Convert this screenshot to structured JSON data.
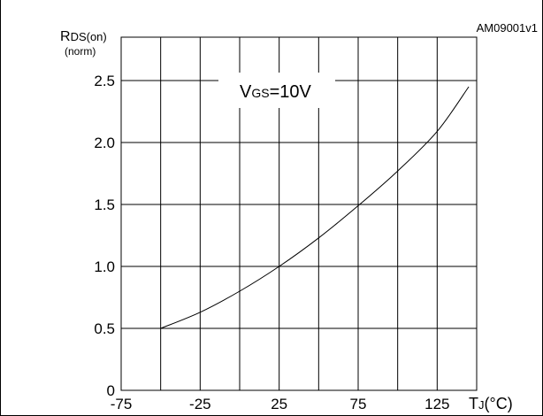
{
  "chart_data": {
    "type": "line",
    "code": "AM09001v1",
    "ylabel": {
      "main": "R",
      "sub": "DS(on)",
      "unit": "(norm)"
    },
    "xlabel": {
      "main": "T",
      "sub": "J",
      "unit": "(°C)"
    },
    "annotation": {
      "main": "V",
      "sub": "GS",
      "rest": "=10V"
    },
    "xlim": [
      -75,
      150
    ],
    "ylim": [
      0,
      2.85
    ],
    "xticks": [
      {
        "value": -75,
        "label": "-75"
      },
      {
        "value": -25,
        "label": "-25"
      },
      {
        "value": 25,
        "label": "25"
      },
      {
        "value": 75,
        "label": "75"
      },
      {
        "value": 125,
        "label": "125"
      }
    ],
    "xgrid": [
      -50,
      -25,
      0,
      25,
      50,
      75,
      100,
      125
    ],
    "yticks": [
      {
        "value": 0,
        "label": "0"
      },
      {
        "value": 0.5,
        "label": "0.5"
      },
      {
        "value": 1.0,
        "label": "1.0"
      },
      {
        "value": 1.5,
        "label": "1.5"
      },
      {
        "value": 2.0,
        "label": "2.0"
      },
      {
        "value": 2.5,
        "label": "2.5"
      }
    ],
    "series": [
      {
        "x": [
          -50,
          -25,
          0,
          25,
          50,
          75,
          100,
          125,
          145
        ],
        "y": [
          0.5,
          0.63,
          0.8,
          1.0,
          1.23,
          1.49,
          1.77,
          2.09,
          2.45
        ]
      }
    ]
  }
}
